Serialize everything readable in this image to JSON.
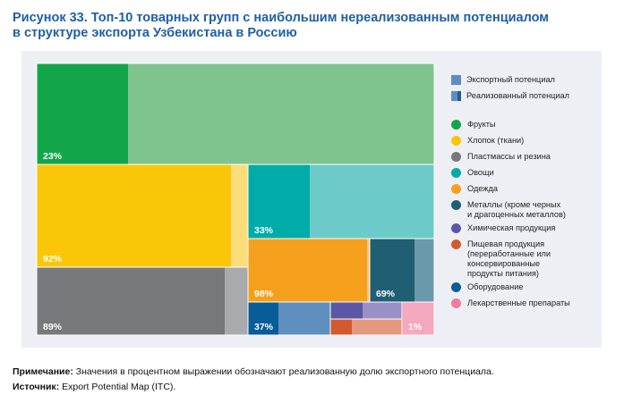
{
  "title": {
    "line1": "Рисунок 33. Топ-10 товарных групп с наибольшим нереализованным потенциалом",
    "line2": "в структуре экспорта Узбекистана в Россию"
  },
  "legend": {
    "export_potential": "Экспортный потенциал",
    "realized_potential": "Реализованный потенциал",
    "items": [
      {
        "label": "Фрукты",
        "color": "#13a54a"
      },
      {
        "label": "Хлопок (ткани)",
        "color": "#f9c708"
      },
      {
        "label": "Пластмассы и резина",
        "color": "#77787c"
      },
      {
        "label": "Овощи",
        "color": "#00aca8"
      },
      {
        "label": "Одежда",
        "color": "#f5a01d"
      },
      {
        "label": "Металлы (кроме черных\nи драгоценных металлов)",
        "color": "#1f5e73"
      },
      {
        "label": "Химическая продукция",
        "color": "#5a57a6"
      },
      {
        "label": "Пищевая продукция\n(переработанные или\nконсервированные\nпродукты питания)",
        "color": "#d35a2e"
      },
      {
        "label": "Оборудование",
        "color": "#085c98"
      },
      {
        "label": "Лекарственные препараты",
        "color": "#f07ca0"
      }
    ]
  },
  "chart_data": {
    "type": "treemap",
    "title": "Топ-10 товарных групп с наибольшим нереализованным потенциалом в структуре экспорта Узбекистана в Россию",
    "value_meaning": "realized share of export potential",
    "groups": [
      {
        "name": "Фрукты",
        "realized_percent": 23,
        "label": "23%",
        "color": "#13a54a",
        "light": "#7fc48e"
      },
      {
        "name": "Хлопок (ткани)",
        "realized_percent": 92,
        "label": "92%",
        "color": "#f9c708",
        "light": "#fddc7a"
      },
      {
        "name": "Пластмассы и резина",
        "realized_percent": 89,
        "label": "89%",
        "color": "#77787c",
        "light": "#a9aaae"
      },
      {
        "name": "Овощи",
        "realized_percent": 33,
        "label": "33%",
        "color": "#00aca8",
        "light": "#6ccbc9"
      },
      {
        "name": "Одежда",
        "realized_percent": 98,
        "label": "98%",
        "color": "#f5a01d",
        "light": "#f8c47f"
      },
      {
        "name": "Металлы (кроме черных и драгоценных металлов)",
        "realized_percent": 69,
        "label": "69%",
        "color": "#1f5e73",
        "light": "#6a99ac"
      },
      {
        "name": "Химическая продукция",
        "realized_percent": null,
        "label": "",
        "color": "#5a57a6",
        "light": "#9890c7"
      },
      {
        "name": "Пищевая продукция (переработанные или консервированные продукты питания)",
        "realized_percent": null,
        "label": "",
        "color": "#d35a2e",
        "light": "#e4987e"
      },
      {
        "name": "Оборудование",
        "realized_percent": 37,
        "label": "37%",
        "color": "#085c98",
        "light": "#5f8fbf"
      },
      {
        "name": "Лекарственные препараты",
        "realized_percent": 1,
        "label": "1%",
        "color": "#f07ca0",
        "light": "#f5a9be"
      }
    ]
  },
  "note": {
    "note_label": "Примечание:",
    "note_text": "Значения в процентном выражении обозначают реализованную долю экспортного потенциала.",
    "source_label": "Источник:",
    "source_text": "Export Potential Map (ITC)."
  },
  "colors": {
    "title": "#1f5fa6",
    "panel_bg": "#eeeff5",
    "legend_export": "#5b8ec3",
    "legend_realized": "#1f5e8f"
  }
}
